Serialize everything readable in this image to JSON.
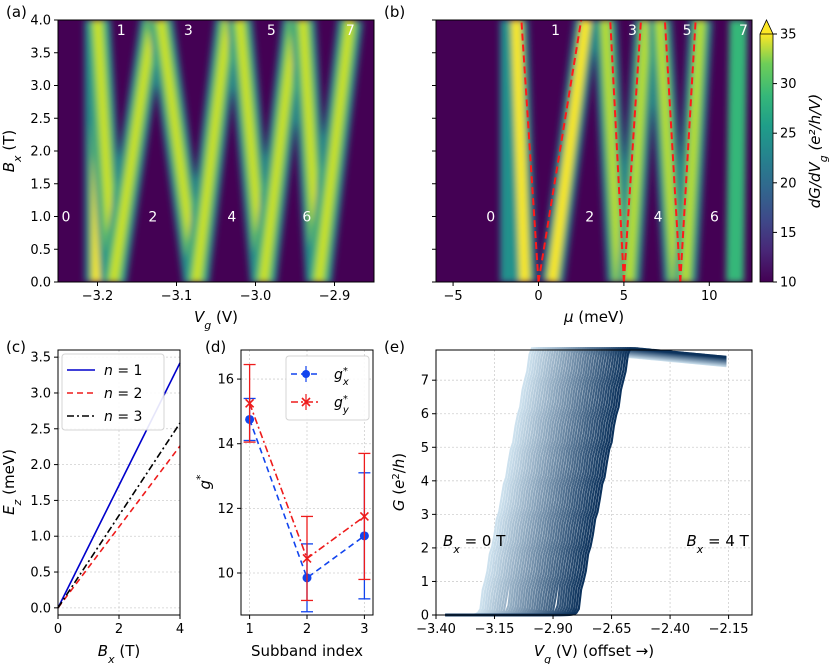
{
  "figure_labels": {
    "a": "(a)",
    "b": "(b)",
    "c": "(c)",
    "d": "(d)",
    "e": "(e)"
  },
  "chart_data": [
    {
      "id": "a",
      "type": "heatmap",
      "xlabel": "V_g (V)",
      "ylabel": "B_x (T)",
      "xlim": [
        -3.25,
        -2.85
      ],
      "ylim": [
        0,
        4
      ],
      "xticks": [
        "-3.2",
        "-3.1",
        "-3.0",
        "-2.9"
      ],
      "yticks": [
        "0.0",
        "0.5",
        "1.0",
        "1.5",
        "2.0",
        "2.5",
        "3.0",
        "3.5",
        "4.0"
      ],
      "ridges": [
        {
          "x0": -3.2,
          "x1": -3.2
        },
        {
          "x0": -3.18,
          "x1": -3.2
        },
        {
          "x0": -3.18,
          "x1": -3.13
        },
        {
          "x0": -3.075,
          "x1": -3.12
        },
        {
          "x0": -3.075,
          "x1": -3.035
        },
        {
          "x0": -2.99,
          "x1": -3.02
        },
        {
          "x0": -2.99,
          "x1": -2.95
        },
        {
          "x0": -2.92,
          "x1": -2.94
        },
        {
          "x0": -2.92,
          "x1": -2.88
        }
      ],
      "regions_low": [
        {
          "label": "0",
          "x": -3.24
        },
        {
          "label": "2",
          "x": -3.13
        },
        {
          "label": "4",
          "x": -3.03
        },
        {
          "label": "6",
          "x": -2.935
        }
      ],
      "regions_high": [
        {
          "label": "1",
          "x": -3.17
        },
        {
          "label": "3",
          "x": -3.085
        },
        {
          "label": "5",
          "x": -2.98
        },
        {
          "label": "7",
          "x": -2.88
        }
      ]
    },
    {
      "id": "b",
      "type": "heatmap",
      "xlabel": "μ (meV)",
      "xlim": [
        -6,
        12.5
      ],
      "ylim": [
        0,
        4
      ],
      "xticks": [
        "-5",
        "0",
        "5",
        "10"
      ],
      "fans": [
        {
          "x0": 0,
          "left_top": -1.0,
          "right_top": 2.5
        },
        {
          "x0": 5,
          "left_top": 4.2,
          "right_top": 6.0
        },
        {
          "x0": 8.3,
          "left_top": 7.4,
          "right_top": 9.2
        }
      ],
      "regions_low": [
        {
          "label": "0",
          "x": -2.8
        },
        {
          "label": "2",
          "x": 3.0
        },
        {
          "label": "4",
          "x": 7.0
        },
        {
          "label": "6",
          "x": 10.3
        }
      ],
      "regions_high": [
        {
          "label": "1",
          "x": 1.0
        },
        {
          "label": "3",
          "x": 5.5
        },
        {
          "label": "5",
          "x": 8.7
        },
        {
          "label": "7",
          "x": 12.0
        }
      ],
      "colorbar": {
        "label": "dG/dV_g (e²/h/V)",
        "range": [
          10,
          35
        ],
        "ticks": [
          "10",
          "15",
          "20",
          "25",
          "30",
          "35"
        ]
      }
    },
    {
      "id": "c",
      "type": "line",
      "xlabel": "B_x (T)",
      "ylabel": "E_z (meV)",
      "xlim": [
        0,
        4
      ],
      "ylim": [
        -0.1,
        3.6
      ],
      "xticks": [
        "0",
        "2",
        "4"
      ],
      "yticks": [
        "0.0",
        "0.5",
        "1.0",
        "1.5",
        "2.0",
        "2.5",
        "3.0",
        "3.5"
      ],
      "grid": true,
      "legend": "top-left",
      "series": [
        {
          "name": "n = 1",
          "x": [
            0,
            4
          ],
          "y": [
            0,
            3.42
          ],
          "color": "#0000cc",
          "dash": "solid"
        },
        {
          "name": "n = 2",
          "x": [
            0,
            4
          ],
          "y": [
            0,
            2.26
          ],
          "color": "#ee1c1c",
          "dash": "dashed"
        },
        {
          "name": "n = 3",
          "x": [
            0,
            4
          ],
          "y": [
            0,
            2.58
          ],
          "color": "#000000",
          "dash": "dashdot"
        }
      ]
    },
    {
      "id": "d",
      "type": "scatter",
      "xlabel": "Subband index",
      "ylabel": "g*",
      "xlim": [
        0.85,
        3.15
      ],
      "ylim": [
        8.7,
        16.9
      ],
      "xticks": [
        "1",
        "2",
        "3"
      ],
      "yticks": [
        "10",
        "12",
        "14",
        "16"
      ],
      "grid": true,
      "legend": "top-right",
      "series": [
        {
          "name": "g*_x",
          "x": [
            1,
            2,
            3
          ],
          "y": [
            14.75,
            9.85,
            11.15
          ],
          "err": [
            0.65,
            1.05,
            1.95
          ],
          "color": "#1144ee",
          "marker": "circle",
          "dash": "dashed"
        },
        {
          "name": "g*_y",
          "x": [
            1,
            2,
            3
          ],
          "y": [
            15.25,
            10.45,
            11.75
          ],
          "err": [
            1.2,
            1.3,
            1.95
          ],
          "color": "#ee1c1c",
          "marker": "x",
          "dash": "dashdot"
        }
      ]
    },
    {
      "id": "e",
      "type": "line",
      "xlabel": "V_g (V) (offset →)",
      "ylabel": "G (e²/h)",
      "xlim": [
        -3.4,
        -2.05
      ],
      "ylim": [
        0,
        7.9
      ],
      "xticks": [
        "-3.40",
        "-3.15",
        "-2.90",
        "-2.65",
        "-2.40",
        "-2.15"
      ],
      "yticks": [
        "0",
        "1",
        "2",
        "3",
        "4",
        "5",
        "6",
        "7"
      ],
      "grid": true,
      "trace_count": 41,
      "offset_range": [
        0,
        0.42
      ],
      "base_rise": -3.205,
      "annotations": [
        {
          "text": "B_x = 0 T",
          "x": -3.37,
          "y": 2.2
        },
        {
          "text": "B_x = 4 T",
          "x": -2.33,
          "y": 2.2
        }
      ]
    }
  ]
}
